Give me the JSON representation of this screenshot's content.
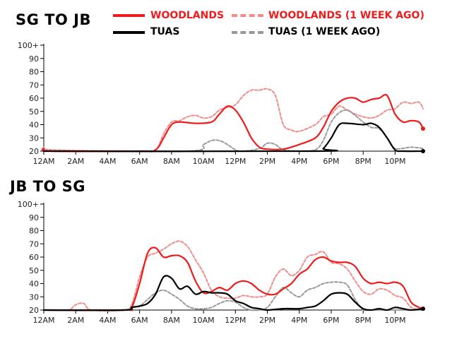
{
  "legend": {
    "woodlands": {
      "label": "WOODLANDS",
      "color": "#ee1c1c"
    },
    "woodlands_prev": {
      "label": "WOODLANDS (1 WEEK AGO)",
      "color": "#f08c8c"
    },
    "tuas": {
      "label": "TUAS",
      "color": "#000000"
    },
    "tuas_prev": {
      "label": "TUAS (1 WEEK AGO)",
      "color": "#999999"
    }
  },
  "chart_data": [
    {
      "type": "line",
      "title": "SG TO JB",
      "x_ticks": [
        "12AM",
        "2AM",
        "4AM",
        "6AM",
        "8AM",
        "10AM",
        "12PM",
        "2PM",
        "4PM",
        "6PM",
        "8PM",
        "10PM"
      ],
      "y_ticks": [
        "20",
        "30",
        "40",
        "50",
        "60",
        "70",
        "80",
        "90",
        "100+"
      ],
      "xlim": [
        0,
        23.75
      ],
      "ylim": [
        20,
        100
      ],
      "grid": false,
      "legend_position": "top-right",
      "series": [
        {
          "name": "WOODLANDS",
          "style": "solid",
          "color": "#ee1c1c",
          "points": [
            [
              0,
              22
            ],
            [
              0.5,
              20
            ],
            [
              6,
              20
            ],
            [
              7,
              21
            ],
            [
              7.5,
              30
            ],
            [
              8,
              40
            ],
            [
              8.5,
              42
            ],
            [
              9.5,
              41
            ],
            [
              10.5,
              42
            ],
            [
              11,
              48
            ],
            [
              11.5,
              54
            ],
            [
              12,
              51
            ],
            [
              12.5,
              42
            ],
            [
              13,
              30
            ],
            [
              13.5,
              23
            ],
            [
              14,
              21.5
            ],
            [
              15,
              21.5
            ],
            [
              16,
              25
            ],
            [
              17,
              30
            ],
            [
              17.5,
              38
            ],
            [
              18,
              50
            ],
            [
              18.5,
              57
            ],
            [
              19,
              60
            ],
            [
              19.5,
              60
            ],
            [
              20,
              57
            ],
            [
              20.5,
              59
            ],
            [
              21,
              60
            ],
            [
              21.5,
              62
            ],
            [
              22,
              48
            ],
            [
              22.5,
              42
            ],
            [
              23,
              43
            ],
            [
              23.5,
              42
            ],
            [
              23.75,
              37
            ]
          ]
        },
        {
          "name": "WOODLANDS (1 WEEK AGO)",
          "style": "dashed",
          "color": "#f08c8c",
          "points": [
            [
              0,
              23
            ],
            [
              0.5,
              21
            ],
            [
              6,
              20
            ],
            [
              7,
              21
            ],
            [
              7.5,
              33
            ],
            [
              8,
              42
            ],
            [
              8.5,
              43
            ],
            [
              9,
              46
            ],
            [
              9.5,
              47
            ],
            [
              10,
              45
            ],
            [
              10.5,
              46
            ],
            [
              11,
              51
            ],
            [
              11.5,
              53
            ],
            [
              12,
              55
            ],
            [
              12.5,
              62
            ],
            [
              13,
              66
            ],
            [
              13.5,
              66
            ],
            [
              14,
              67
            ],
            [
              14.5,
              62
            ],
            [
              15,
              40
            ],
            [
              15.5,
              36
            ],
            [
              16,
              35
            ],
            [
              17,
              40
            ],
            [
              17.5,
              46
            ],
            [
              18,
              48
            ],
            [
              18.5,
              54
            ],
            [
              19,
              51
            ],
            [
              19.5,
              48
            ],
            [
              20,
              46
            ],
            [
              20.5,
              45
            ],
            [
              21,
              47
            ],
            [
              21.5,
              51
            ],
            [
              22,
              52
            ],
            [
              22.5,
              57
            ],
            [
              23,
              56
            ],
            [
              23.5,
              57
            ],
            [
              23.75,
              52
            ]
          ]
        },
        {
          "name": "TUAS",
          "style": "solid",
          "color": "#000000",
          "points": [
            [
              0,
              20
            ],
            [
              17,
              20
            ],
            [
              17.5,
              22
            ],
            [
              18,
              30
            ],
            [
              18.5,
              40
            ],
            [
              19,
              41
            ],
            [
              20,
              40
            ],
            [
              20.5,
              41
            ],
            [
              21,
              38
            ],
            [
              21.5,
              30
            ],
            [
              22,
              21
            ],
            [
              22.5,
              20
            ],
            [
              23.75,
              20
            ]
          ]
        },
        {
          "name": "TUAS (1 WEEK AGO)",
          "style": "dashed",
          "color": "#999999",
          "points": [
            [
              0,
              20
            ],
            [
              9,
              20
            ],
            [
              10,
              25
            ],
            [
              10.5,
              28
            ],
            [
              11,
              28
            ],
            [
              11.5,
              25
            ],
            [
              12,
              21
            ],
            [
              12.5,
              20
            ],
            [
              13.5,
              22
            ],
            [
              14,
              26
            ],
            [
              14.5,
              25
            ],
            [
              15,
              21
            ],
            [
              16,
              20
            ],
            [
              17,
              21
            ],
            [
              17.5,
              28
            ],
            [
              18,
              42
            ],
            [
              18.5,
              49
            ],
            [
              19,
              51
            ],
            [
              19.5,
              47
            ],
            [
              20,
              42
            ],
            [
              20.5,
              38
            ],
            [
              21,
              37
            ],
            [
              21.5,
              30
            ],
            [
              22,
              22
            ],
            [
              23,
              23
            ],
            [
              23.75,
              22
            ]
          ]
        }
      ]
    },
    {
      "type": "line",
      "title": "JB TO SG",
      "x_ticks": [
        "12AM",
        "2AM",
        "4AM",
        "6AM",
        "8AM",
        "10AM",
        "12PM",
        "2PM",
        "4PM",
        "6PM",
        "8PM",
        "10PM"
      ],
      "y_ticks": [
        "20",
        "30",
        "40",
        "50",
        "60",
        "70",
        "80",
        "90",
        "100+"
      ],
      "xlim": [
        0,
        23.75
      ],
      "ylim": [
        20,
        100
      ],
      "grid": false,
      "legend_position": "none",
      "series": [
        {
          "name": "WOODLANDS",
          "style": "solid",
          "color": "#ee1c1c",
          "points": [
            [
              0,
              20
            ],
            [
              5,
              20
            ],
            [
              5.5,
              22
            ],
            [
              6,
              40
            ],
            [
              6.5,
              63
            ],
            [
              7,
              67
            ],
            [
              7.5,
              60
            ],
            [
              8,
              61
            ],
            [
              8.5,
              61
            ],
            [
              9,
              56
            ],
            [
              9.5,
              42
            ],
            [
              10,
              33
            ],
            [
              10.5,
              34
            ],
            [
              11,
              37
            ],
            [
              11.5,
              35
            ],
            [
              12,
              40
            ],
            [
              12.5,
              42
            ],
            [
              13,
              40
            ],
            [
              13.5,
              35
            ],
            [
              14,
              32
            ],
            [
              14.5,
              32
            ],
            [
              15,
              36
            ],
            [
              15.5,
              40
            ],
            [
              16,
              47
            ],
            [
              16.5,
              51
            ],
            [
              17,
              58
            ],
            [
              17.5,
              60
            ],
            [
              18,
              57
            ],
            [
              18.5,
              56
            ],
            [
              19,
              56
            ],
            [
              19.5,
              53
            ],
            [
              20,
              44
            ],
            [
              20.5,
              40
            ],
            [
              21,
              41
            ],
            [
              21.5,
              40
            ],
            [
              22,
              41
            ],
            [
              22.5,
              38
            ],
            [
              23,
              26
            ],
            [
              23.5,
              22
            ],
            [
              23.75,
              21
            ]
          ]
        },
        {
          "name": "WOODLANDS (1 WEEK AGO)",
          "style": "dashed",
          "color": "#f08c8c",
          "points": [
            [
              0,
              20
            ],
            [
              1.5,
              20
            ],
            [
              2,
              24
            ],
            [
              2.5,
              25
            ],
            [
              3,
              20
            ],
            [
              5,
              20
            ],
            [
              5.5,
              24
            ],
            [
              6,
              45
            ],
            [
              6.5,
              60
            ],
            [
              7,
              63
            ],
            [
              7.5,
              66
            ],
            [
              8,
              70
            ],
            [
              8.5,
              72
            ],
            [
              9,
              68
            ],
            [
              9.5,
              58
            ],
            [
              10,
              48
            ],
            [
              10.5,
              35
            ],
            [
              11,
              30
            ],
            [
              11.5,
              29
            ],
            [
              12,
              29
            ],
            [
              12.5,
              31
            ],
            [
              13,
              30
            ],
            [
              13.5,
              30
            ],
            [
              14,
              32
            ],
            [
              14.5,
              45
            ],
            [
              15,
              51
            ],
            [
              15.5,
              46
            ],
            [
              16,
              50
            ],
            [
              16.5,
              60
            ],
            [
              17,
              62
            ],
            [
              17.5,
              64
            ],
            [
              18,
              56
            ],
            [
              18.5,
              55
            ],
            [
              19,
              51
            ],
            [
              19.5,
              42
            ],
            [
              20,
              34
            ],
            [
              20.5,
              32
            ],
            [
              21,
              36
            ],
            [
              21.5,
              35
            ],
            [
              22,
              31
            ],
            [
              22.5,
              29
            ],
            [
              23,
              22
            ],
            [
              23.5,
              20
            ]
          ]
        },
        {
          "name": "TUAS",
          "style": "solid",
          "color": "#000000",
          "points": [
            [
              0,
              20
            ],
            [
              5,
              20
            ],
            [
              5.5,
              22
            ],
            [
              6,
              23
            ],
            [
              6.5,
              25
            ],
            [
              7,
              32
            ],
            [
              7.5,
              45
            ],
            [
              8,
              44
            ],
            [
              8.5,
              36
            ],
            [
              9,
              38
            ],
            [
              9.5,
              32
            ],
            [
              10,
              34
            ],
            [
              10.5,
              33
            ],
            [
              11,
              33
            ],
            [
              11.5,
              32
            ],
            [
              12,
              27
            ],
            [
              12.5,
              25
            ],
            [
              13,
              22
            ],
            [
              13.5,
              21
            ],
            [
              14,
              20
            ],
            [
              15,
              21
            ],
            [
              16,
              21
            ],
            [
              16.5,
              22
            ],
            [
              17,
              23
            ],
            [
              17.5,
              27
            ],
            [
              18,
              32
            ],
            [
              18.5,
              33
            ],
            [
              19,
              32
            ],
            [
              19.5,
              26
            ],
            [
              20,
              21
            ],
            [
              20.5,
              20
            ],
            [
              21,
              21
            ],
            [
              21.5,
              20
            ],
            [
              22,
              22
            ],
            [
              22.5,
              21
            ],
            [
              23,
              20
            ],
            [
              23.75,
              21
            ]
          ]
        },
        {
          "name": "TUAS (1 WEEK AGO)",
          "style": "dashed",
          "color": "#999999",
          "points": [
            [
              0,
              20
            ],
            [
              5,
              20
            ],
            [
              5.5,
              22
            ],
            [
              6,
              23
            ],
            [
              6.5,
              28
            ],
            [
              7,
              33
            ],
            [
              7.5,
              35
            ],
            [
              8,
              32
            ],
            [
              8.5,
              28
            ],
            [
              9,
              23
            ],
            [
              9.5,
              21
            ],
            [
              10,
              21
            ],
            [
              10.5,
              22
            ],
            [
              11,
              25
            ],
            [
              11.5,
              27
            ],
            [
              12,
              26
            ],
            [
              12.5,
              22
            ],
            [
              13,
              20
            ],
            [
              13.5,
              20
            ],
            [
              14,
              22
            ],
            [
              14.5,
              30
            ],
            [
              15,
              37
            ],
            [
              15.5,
              33
            ],
            [
              16,
              30
            ],
            [
              16.5,
              35
            ],
            [
              17,
              37
            ],
            [
              17.5,
              40
            ],
            [
              18,
              41
            ],
            [
              18.5,
              41
            ],
            [
              19,
              39
            ],
            [
              19.5,
              28
            ],
            [
              20,
              20
            ],
            [
              20.5,
              20
            ],
            [
              23.75,
              20
            ]
          ]
        }
      ]
    }
  ]
}
